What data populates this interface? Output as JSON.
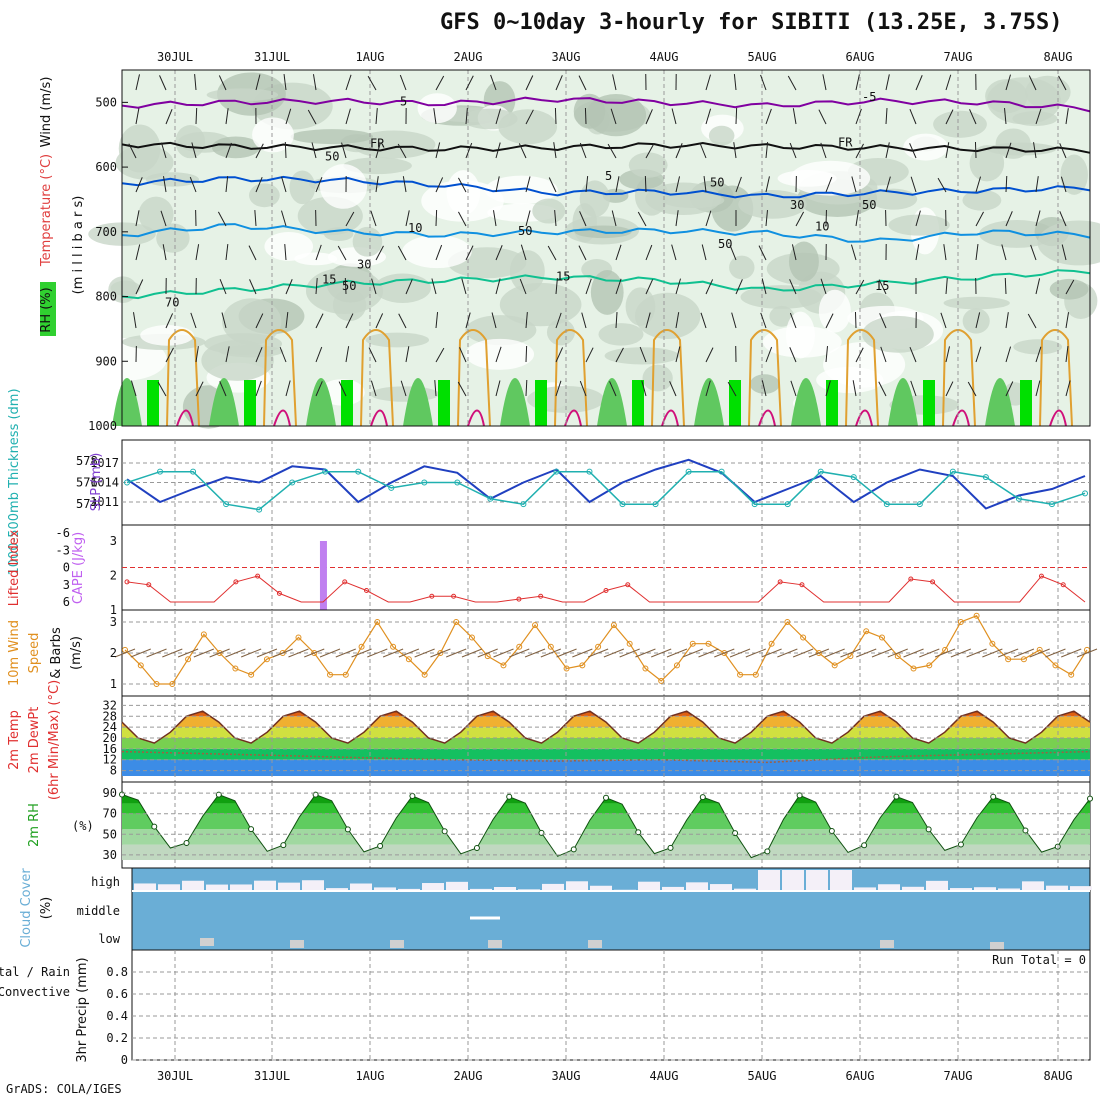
{
  "title": "GFS 0~10day 3-hourly for SIBITI (13.25E, 3.75S)",
  "footer": "GrADS: COLA/IGES",
  "colors": {
    "rh_dark": "#00c800",
    "rh_light": "#e6f2e6",
    "temp": "#0050d0",
    "wind": "#8000a0",
    "cape": "#c080f0",
    "li": "#e03030",
    "speed": "#e09020",
    "slp": "#2040c0",
    "thick": "#20b0b0",
    "cloud": "#6aaed6"
  },
  "chart_data": [
    {
      "type": "area",
      "panel": "upper-air",
      "y_axis_label": [
        "RH (%)",
        "Temperature (°C)",
        "Wind (m/s)"
      ],
      "y_axis_sublabel": "(m i l l i b a r s)",
      "x_dates": [
        "30JUL",
        "31JUL",
        "1AUG",
        "2AUG",
        "3AUG",
        "4AUG",
        "5AUG",
        "6AUG",
        "7AUG",
        "8AUG"
      ],
      "y_ticks": [
        500,
        600,
        700,
        800,
        900,
        1000
      ],
      "ylim": [
        1000,
        450
      ],
      "contour_labels": {
        "wind": [
          "5",
          "-5"
        ],
        "freezing": [
          "FR",
          "FR"
        ],
        "temp_5": [
          "5"
        ],
        "temp_10": [
          "10",
          "10"
        ],
        "temp_15": [
          "15",
          "15",
          "15"
        ],
        "rh": [
          "50",
          "50",
          "50",
          "50",
          "30",
          "30",
          "70",
          "50",
          "50"
        ]
      },
      "isotherms": [
        {
          "name": "-5",
          "level_mb": [
            505,
            500,
            498,
            502,
            495,
            500,
            505,
            498,
            500,
            510
          ]
        },
        {
          "name": "FR",
          "level_mb": [
            565,
            568,
            570,
            572,
            570,
            566,
            568,
            570,
            572,
            574
          ]
        },
        {
          "name": "5",
          "level_mb": [
            625,
            618,
            620,
            628,
            640,
            638,
            645,
            640,
            636,
            632
          ]
        },
        {
          "name": "10",
          "level_mb": [
            705,
            690,
            700,
            705,
            700,
            698,
            702,
            715,
            700,
            705
          ]
        },
        {
          "name": "15",
          "level_mb": [
            800,
            790,
            780,
            775,
            770,
            775,
            790,
            780,
            770,
            760
          ]
        }
      ]
    },
    {
      "type": "line",
      "panel": "slp-thickness",
      "ylabel_left": "1000-500mb Thickness (dm)",
      "ylabel_right": "SLP (mb)",
      "left_ticks": [
        574,
        576,
        578
      ],
      "right_ticks": [
        1011,
        1014,
        1017
      ],
      "series": [
        {
          "key": "slp",
          "values": [
            1014.5,
            1011,
            1013,
            1014.8,
            1014,
            1016.5,
            1016,
            1011,
            1014,
            1016.5,
            1015.5,
            1011.5,
            1014,
            1016,
            1011,
            1014,
            1016,
            1017.5,
            1015.5,
            1011,
            1013,
            1015,
            1011,
            1014,
            1016,
            1015,
            1010,
            1012,
            1013,
            1015
          ]
        },
        {
          "key": "thickness",
          "values": [
            576,
            577,
            577,
            574,
            573.5,
            576,
            577,
            577,
            575.5,
            576,
            576,
            574.5,
            574,
            577,
            577,
            574,
            574,
            577,
            577,
            574,
            574,
            577,
            576.5,
            574,
            574,
            577,
            576.5,
            574.5,
            574,
            575
          ]
        }
      ]
    },
    {
      "type": "bar",
      "panel": "cape-li",
      "ylabel_left": "Lifted Index",
      "ylabel_right": "CAPE (J/kg)",
      "li_ticks": [
        "-6",
        "-3",
        "0",
        "3",
        "6"
      ],
      "cape_ticks": [
        "1",
        "2",
        "3"
      ],
      "cape": [
        {
          "x_index": 9,
          "value": 3
        }
      ],
      "li_values": [
        2.5,
        3,
        6,
        6,
        6,
        2.5,
        1.5,
        4.5,
        6,
        6,
        2.5,
        4,
        6,
        6,
        5,
        5,
        6,
        6,
        5.5,
        5,
        6,
        6,
        4,
        3,
        6,
        6,
        6,
        6,
        6,
        6,
        2.5,
        3,
        6,
        6,
        6,
        6,
        2,
        2.5,
        6,
        6,
        6,
        6,
        1.5,
        3,
        6
      ]
    },
    {
      "type": "line",
      "panel": "wind10m",
      "ylabel": [
        "10m Wind Speed",
        "& Barbs (m/s)"
      ],
      "ylabel_parts": [
        "10m Wind",
        "Speed",
        "& Barbs",
        "(m/s)"
      ],
      "ticks": [
        "1",
        "2",
        "3"
      ],
      "values": [
        2.1,
        1.6,
        1.0,
        1.0,
        1.8,
        2.6,
        2.0,
        1.5,
        1.3,
        1.8,
        2.0,
        2.5,
        2.0,
        1.3,
        1.3,
        2.2,
        3.0,
        2.2,
        1.8,
        1.3,
        2.0,
        3.0,
        2.5,
        1.9,
        1.6,
        2.2,
        2.9,
        2.2,
        1.5,
        1.6,
        2.2,
        2.9,
        2.3,
        1.5,
        1.1,
        1.6,
        2.3,
        2.3,
        2.0,
        1.3,
        1.3,
        2.3,
        3.0,
        2.5,
        2.0,
        1.6,
        1.9,
        2.7,
        2.5,
        1.9,
        1.5,
        1.6,
        2.1,
        3.0,
        3.2,
        2.3,
        1.8,
        1.8,
        2.1,
        1.6,
        1.3,
        2.1
      ]
    },
    {
      "type": "area",
      "panel": "temp2m",
      "ylabel": [
        "2m Temp",
        "2m DewPt",
        "(6hr Min/Max) (°C)"
      ],
      "ticks": [
        "8",
        "12",
        "16",
        "20",
        "24",
        "28",
        "32"
      ],
      "temp_max": [
        30,
        30,
        30,
        30,
        30,
        30,
        30,
        30,
        30,
        30
      ],
      "temp_min": [
        18,
        18,
        18,
        18,
        18,
        18,
        18,
        18,
        18,
        18
      ],
      "dewpoint": [
        15,
        14,
        13,
        12,
        11.5,
        12,
        11,
        13,
        14,
        15
      ]
    },
    {
      "type": "area",
      "panel": "rh2m",
      "ylabel": [
        "2m RH",
        "(%)"
      ],
      "ticks": [
        "30",
        "50",
        "70",
        "90"
      ],
      "max": [
        90,
        90,
        90,
        88,
        88,
        86,
        90,
        88,
        88,
        86
      ],
      "min": [
        38,
        32,
        32,
        30,
        27,
        30,
        25,
        33,
        33,
        30
      ]
    },
    {
      "type": "bar",
      "panel": "cloud",
      "ylabel": [
        "Cloud Cover",
        "(%)"
      ],
      "levels": [
        "high",
        "middle",
        "low"
      ]
    },
    {
      "type": "bar",
      "panel": "precip",
      "ylabel": "3hr Precip (mm)",
      "legend_left": [
        "Total / Rain",
        "Convective"
      ],
      "ticks": [
        "0",
        "0.2",
        "0.4",
        "0.6",
        "0.8"
      ],
      "ylim": [
        0,
        1
      ],
      "run_total_label": "Run Total = 0",
      "values": []
    }
  ]
}
